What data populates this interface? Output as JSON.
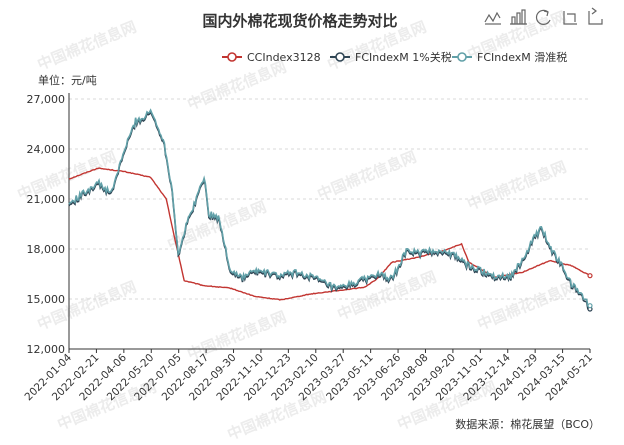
{
  "chart_data": {
    "type": "line",
    "title": "国内外棉花现货价格走势对比",
    "unit_label": "单位：元/吨",
    "source": "数据来源：棉花展望（BCO）",
    "watermark": "中国棉花信息网",
    "legend_position": "top-right",
    "grid": "horizontal dashed",
    "ylim": [
      12000,
      27000
    ],
    "y_ticks": [
      "12,000",
      "15,000",
      "18,000",
      "21,000",
      "24,000",
      "27,000"
    ],
    "x_ticks": [
      "2022-01-04",
      "2022-02-21",
      "2022-04-06",
      "2022-05-20",
      "2022-07-05",
      "2022-08-17",
      "2022-09-30",
      "2022-11-10",
      "2022-12-23",
      "2023-02-10",
      "2023-03-27",
      "2023-05-11",
      "2023-06-26",
      "2023-08-08",
      "2023-09-20",
      "2023-11-01",
      "2023-12-14",
      "2024-01-29",
      "2024-03-15",
      "2024-05-21"
    ],
    "x_range": [
      "2022-01-04",
      "2024-05-21"
    ],
    "series": [
      {
        "name": "CCIndex3128",
        "color": "#c23531",
        "points": [
          [
            "2022-01-04",
            22200
          ],
          [
            "2022-02-21",
            22850
          ],
          [
            "2022-04-06",
            22650
          ],
          [
            "2022-05-20",
            22300
          ],
          [
            "2022-06-15",
            21000
          ],
          [
            "2022-06-30",
            18500
          ],
          [
            "2022-07-15",
            16100
          ],
          [
            "2022-08-17",
            15800
          ],
          [
            "2022-09-30",
            15650
          ],
          [
            "2022-11-10",
            15150
          ],
          [
            "2022-12-23",
            14950
          ],
          [
            "2023-02-10",
            15300
          ],
          [
            "2023-03-27",
            15500
          ],
          [
            "2023-05-11",
            15700
          ],
          [
            "2023-06-01",
            16200
          ],
          [
            "2023-06-26",
            17200
          ],
          [
            "2023-08-08",
            17500
          ],
          [
            "2023-09-20",
            17900
          ],
          [
            "2023-10-20",
            18300
          ],
          [
            "2023-11-01",
            17200
          ],
          [
            "2023-12-14",
            16300
          ],
          [
            "2024-01-29",
            16600
          ],
          [
            "2024-03-15",
            17300
          ],
          [
            "2024-04-20",
            17000
          ],
          [
            "2024-05-21",
            16400
          ]
        ]
      },
      {
        "name": "FCIndexM 1%关税",
        "color": "#2f4554",
        "points": [
          [
            "2022-01-04",
            20600
          ],
          [
            "2022-02-21",
            21900
          ],
          [
            "2022-03-15",
            21200
          ],
          [
            "2022-04-06",
            23800
          ],
          [
            "2022-04-25",
            25600
          ],
          [
            "2022-05-10",
            25800
          ],
          [
            "2022-05-20",
            26200
          ],
          [
            "2022-06-10",
            24500
          ],
          [
            "2022-06-25",
            21500
          ],
          [
            "2022-07-05",
            17600
          ],
          [
            "2022-07-20",
            19500
          ],
          [
            "2022-08-10",
            21500
          ],
          [
            "2022-08-17",
            22300
          ],
          [
            "2022-08-25",
            20000
          ],
          [
            "2022-09-10",
            19800
          ],
          [
            "2022-09-30",
            16600
          ],
          [
            "2022-10-20",
            16200
          ],
          [
            "2022-11-10",
            16600
          ],
          [
            "2022-11-25",
            16500
          ],
          [
            "2022-12-23",
            16300
          ],
          [
            "2023-01-15",
            16500
          ],
          [
            "2023-02-10",
            16300
          ],
          [
            "2023-03-10",
            15800
          ],
          [
            "2023-03-27",
            15500
          ],
          [
            "2023-05-11",
            16100
          ],
          [
            "2023-06-01",
            16400
          ],
          [
            "2023-06-26",
            16100
          ],
          [
            "2023-07-20",
            17800
          ],
          [
            "2023-08-08",
            17700
          ],
          [
            "2023-09-20",
            17800
          ],
          [
            "2023-10-15",
            17400
          ],
          [
            "2023-11-01",
            16900
          ],
          [
            "2023-12-14",
            16300
          ],
          [
            "2024-01-10",
            16300
          ],
          [
            "2024-01-29",
            17200
          ],
          [
            "2024-02-20",
            18700
          ],
          [
            "2024-03-01",
            19200
          ],
          [
            "2024-03-15",
            18000
          ],
          [
            "2024-04-01",
            17100
          ],
          [
            "2024-04-20",
            15800
          ],
          [
            "2024-05-10",
            15000
          ],
          [
            "2024-05-21",
            14400
          ]
        ]
      },
      {
        "name": "FCIndexM 滑准税",
        "color": "#61a0a8",
        "points": [
          [
            "2022-01-04",
            20700
          ],
          [
            "2022-02-21",
            22000
          ],
          [
            "2022-03-15",
            21300
          ],
          [
            "2022-04-06",
            23900
          ],
          [
            "2022-04-25",
            25700
          ],
          [
            "2022-05-10",
            25900
          ],
          [
            "2022-05-20",
            26300
          ],
          [
            "2022-06-10",
            24600
          ],
          [
            "2022-06-25",
            21600
          ],
          [
            "2022-07-05",
            17700
          ],
          [
            "2022-07-20",
            19600
          ],
          [
            "2022-08-10",
            21600
          ],
          [
            "2022-08-17",
            22400
          ],
          [
            "2022-08-25",
            20100
          ],
          [
            "2022-09-10",
            19900
          ],
          [
            "2022-09-30",
            16700
          ],
          [
            "2022-10-20",
            16300
          ],
          [
            "2022-11-10",
            16700
          ],
          [
            "2022-11-25",
            16600
          ],
          [
            "2022-12-23",
            16400
          ],
          [
            "2023-01-15",
            16600
          ],
          [
            "2023-02-10",
            16400
          ],
          [
            "2023-03-10",
            15900
          ],
          [
            "2023-03-27",
            15600
          ],
          [
            "2023-05-11",
            16200
          ],
          [
            "2023-06-01",
            16500
          ],
          [
            "2023-06-26",
            16200
          ],
          [
            "2023-07-20",
            17900
          ],
          [
            "2023-08-08",
            17800
          ],
          [
            "2023-09-20",
            17900
          ],
          [
            "2023-10-15",
            17500
          ],
          [
            "2023-11-01",
            17000
          ],
          [
            "2023-12-14",
            16400
          ],
          [
            "2024-01-10",
            16400
          ],
          [
            "2024-01-29",
            17300
          ],
          [
            "2024-02-20",
            18800
          ],
          [
            "2024-03-01",
            19300
          ],
          [
            "2024-03-15",
            18100
          ],
          [
            "2024-04-01",
            17200
          ],
          [
            "2024-04-20",
            15900
          ],
          [
            "2024-05-10",
            15100
          ],
          [
            "2024-05-21",
            14600
          ]
        ]
      }
    ]
  },
  "toolbox": {
    "icons": [
      "line-chart-icon",
      "bar-chart-icon",
      "restore-icon",
      "data-zoom-icon",
      "zoom-reset-icon"
    ]
  }
}
